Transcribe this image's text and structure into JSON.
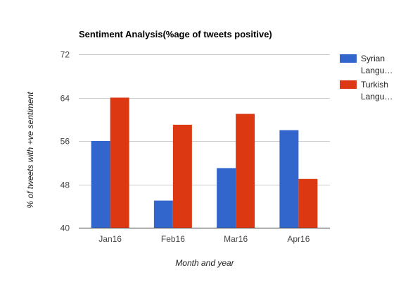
{
  "chart_data": {
    "type": "bar",
    "title": "Sentiment Analysis(%age of tweets positive)",
    "xlabel": "Month and year",
    "ylabel": "% of tweets with +ve sentiment",
    "categories": [
      "Jan16",
      "Feb16",
      "Mar16",
      "Apr16"
    ],
    "series": [
      {
        "name": "Syrian Langu...",
        "legend_lines": [
          "Syrian",
          "Langu…"
        ],
        "color": "#3366cc",
        "values": [
          56,
          45,
          51,
          58
        ]
      },
      {
        "name": "Turkish Langu...",
        "legend_lines": [
          "Turkish",
          "Langu…"
        ],
        "color": "#dc3912",
        "values": [
          64,
          59,
          61,
          49
        ]
      }
    ],
    "ylim": [
      40,
      72
    ],
    "yticks": [
      "72",
      "64",
      "56",
      "48",
      "40"
    ],
    "grid": true,
    "legend": "right"
  }
}
